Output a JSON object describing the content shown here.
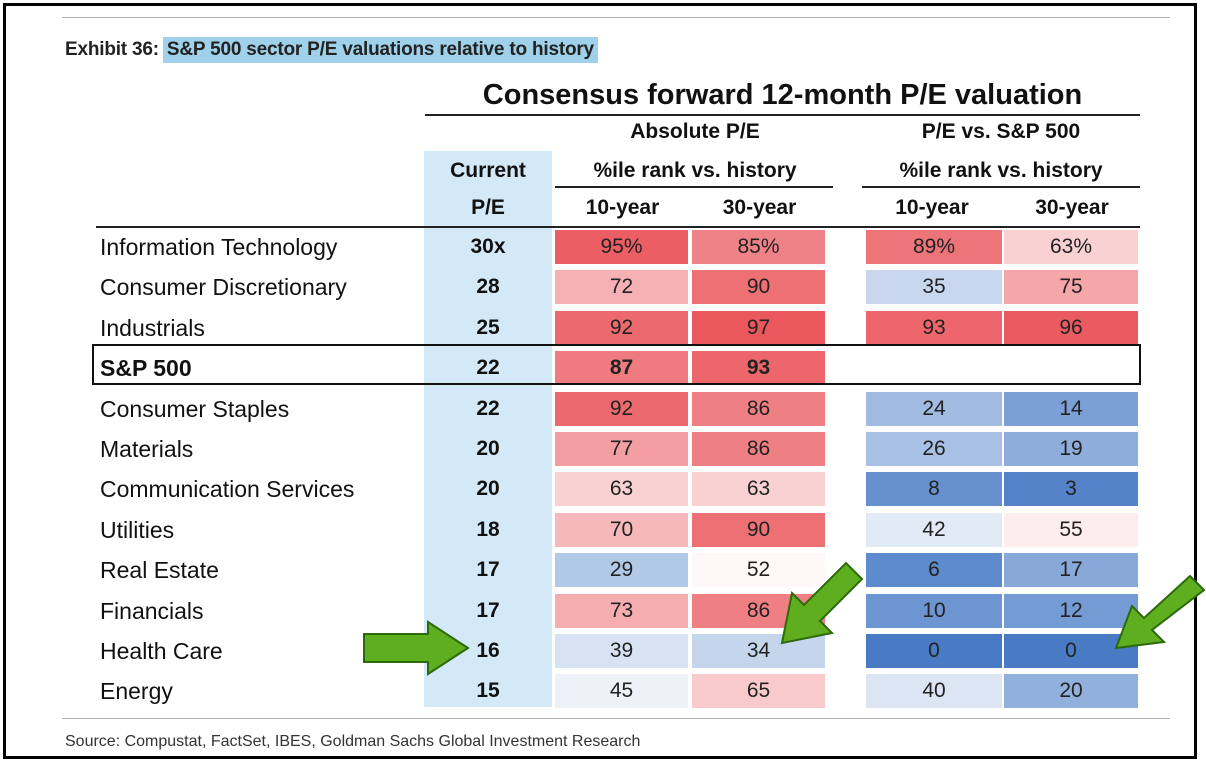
{
  "exhibit": {
    "prefix": "Exhibit 36:",
    "title": "S&P 500 sector P/E valuations relative to history"
  },
  "header": {
    "main_title": "Consensus forward 12-month P/E valuation",
    "current_line1": "Current",
    "current_line2": "P/E",
    "absolute_title": "Absolute P/E",
    "absolute_sub": "%ile rank vs. history",
    "relative_title": "P/E vs. S&P 500",
    "relative_sub": "%ile rank vs. history",
    "abs_10": "10-year",
    "abs_30": "30-year",
    "rel_10": "10-year",
    "rel_30": "30-year"
  },
  "source": "Source: Compustat, FactSet, IBES, Goldman Sachs Global Investment Research",
  "chart_data": {
    "type": "table",
    "title": "Consensus forward 12-month P/E valuation",
    "columns": [
      "Current P/E",
      "Absolute P/E 10-year",
      "Absolute P/E 30-year",
      "P/E vs. S&P 500 10-year",
      "P/E vs. S&P 500 30-year"
    ],
    "rows": [
      {
        "sector": "Information Technology",
        "pe": "30x",
        "abs10": "95%",
        "abs30": "85%",
        "rel10": "89%",
        "rel30": "63%",
        "v": [
          95,
          85,
          89,
          63
        ]
      },
      {
        "sector": "Consumer Discretionary",
        "pe": "28",
        "abs10": "72",
        "abs30": "90",
        "rel10": "35",
        "rel30": "75",
        "v": [
          72,
          90,
          35,
          75
        ]
      },
      {
        "sector": "Industrials",
        "pe": "25",
        "abs10": "92",
        "abs30": "97",
        "rel10": "93",
        "rel30": "96",
        "v": [
          92,
          97,
          93,
          96
        ]
      },
      {
        "sector": "S&P 500",
        "pe": "22",
        "abs10": "87",
        "abs30": "93",
        "rel10": "",
        "rel30": "",
        "v": [
          87,
          93,
          null,
          null
        ],
        "highlight": true
      },
      {
        "sector": "Consumer Staples",
        "pe": "22",
        "abs10": "92",
        "abs30": "86",
        "rel10": "24",
        "rel30": "14",
        "v": [
          92,
          86,
          24,
          14
        ]
      },
      {
        "sector": "Materials",
        "pe": "20",
        "abs10": "77",
        "abs30": "86",
        "rel10": "26",
        "rel30": "19",
        "v": [
          77,
          86,
          26,
          19
        ]
      },
      {
        "sector": "Communication Services",
        "pe": "20",
        "abs10": "63",
        "abs30": "63",
        "rel10": "8",
        "rel30": "3",
        "v": [
          63,
          63,
          8,
          3
        ]
      },
      {
        "sector": "Utilities",
        "pe": "18",
        "abs10": "70",
        "abs30": "90",
        "rel10": "42",
        "rel30": "55",
        "v": [
          70,
          90,
          42,
          55
        ]
      },
      {
        "sector": "Real Estate",
        "pe": "17",
        "abs10": "29",
        "abs30": "52",
        "rel10": "6",
        "rel30": "17",
        "v": [
          29,
          52,
          6,
          17
        ]
      },
      {
        "sector": "Financials",
        "pe": "17",
        "abs10": "73",
        "abs30": "86",
        "rel10": "10",
        "rel30": "12",
        "v": [
          73,
          86,
          10,
          12
        ]
      },
      {
        "sector": "Health Care",
        "pe": "16",
        "abs10": "39",
        "abs30": "34",
        "rel10": "0",
        "rel30": "0",
        "v": [
          39,
          34,
          0,
          0
        ]
      },
      {
        "sector": "Energy",
        "pe": "15",
        "abs10": "45",
        "abs30": "65",
        "rel10": "40",
        "rel30": "20",
        "v": [
          45,
          65,
          40,
          20
        ]
      }
    ],
    "annotations": [
      "arrow pointing to Health Care current P/E",
      "arrow pointing to Health Care absolute 30-year",
      "arrow pointing to Health Care relative 30-year"
    ]
  },
  "colors": {
    "red": "#e8494f",
    "blue": "#3f74c2",
    "neutral": "#ffffff",
    "arrow": "#5fae1f",
    "band": "#d4e9f7"
  }
}
